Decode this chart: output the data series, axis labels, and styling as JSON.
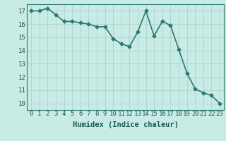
{
  "x": [
    0,
    1,
    2,
    3,
    4,
    5,
    6,
    7,
    8,
    9,
    10,
    11,
    12,
    13,
    14,
    15,
    16,
    17,
    18,
    19,
    20,
    21,
    22,
    23
  ],
  "y": [
    17.0,
    17.0,
    17.2,
    16.7,
    16.2,
    16.2,
    16.1,
    16.0,
    15.8,
    15.8,
    14.9,
    14.5,
    14.3,
    15.4,
    17.0,
    15.1,
    16.2,
    15.9,
    14.1,
    12.3,
    11.1,
    10.8,
    10.6,
    10.0
  ],
  "color": "#2d7a6e",
  "bg_color": "#c8ebe5",
  "grid_color": "#b0d4cc",
  "xlabel": "Humidex (Indice chaleur)",
  "ylim": [
    9.5,
    17.5
  ],
  "xlim": [
    -0.5,
    23.5
  ],
  "yticks": [
    10,
    11,
    12,
    13,
    14,
    15,
    16,
    17
  ],
  "xticks": [
    0,
    1,
    2,
    3,
    4,
    5,
    6,
    7,
    8,
    9,
    10,
    11,
    12,
    13,
    14,
    15,
    16,
    17,
    18,
    19,
    20,
    21,
    22,
    23
  ],
  "marker": "D",
  "markersize": 2.5,
  "linewidth": 1.2,
  "xlabel_fontsize": 7.5,
  "tick_fontsize": 6.5
}
